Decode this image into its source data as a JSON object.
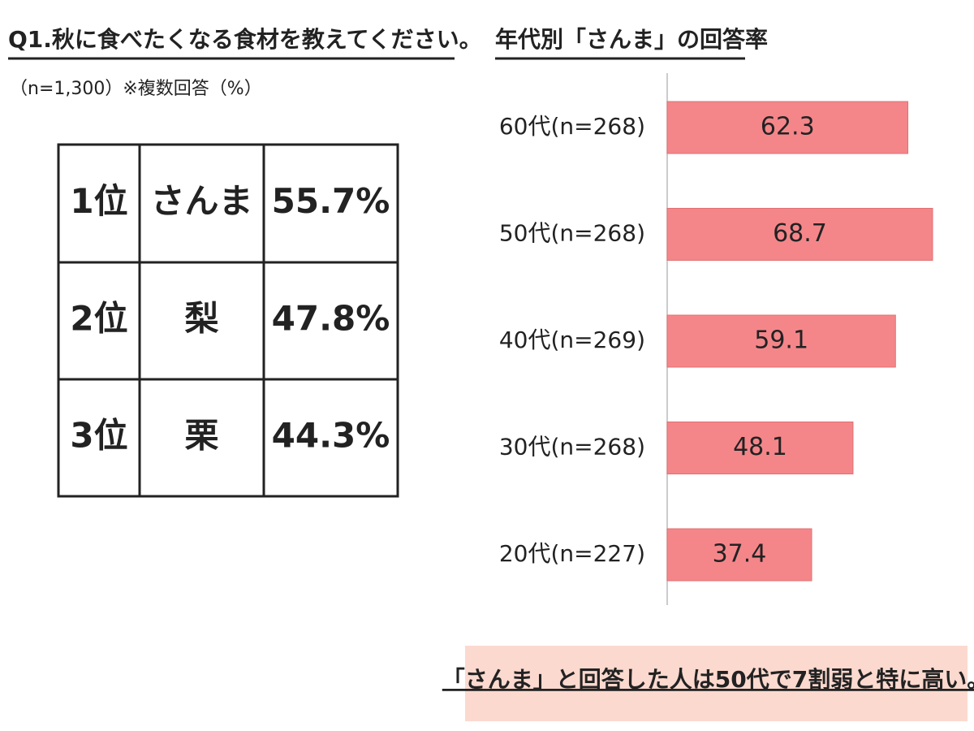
{
  "header": {
    "title": "Q1.秋に食べたくなる食材を教えてください。",
    "note": "（n=1,300）※複数回答（%）"
  },
  "table": {
    "rows": [
      [
        "1位",
        "さんま",
        "55.7%"
      ],
      [
        "2位",
        "梨",
        "47.8%"
      ],
      [
        "3位",
        "栗",
        "44.3%"
      ]
    ]
  },
  "chart_data": {
    "type": "bar",
    "orientation": "horizontal",
    "title": "年代別「さんま」の回答率",
    "categories": [
      "60代(n=268)",
      "50代(n=268)",
      "40代(n=269)",
      "30代(n=268)",
      "20代(n=227)"
    ],
    "values": [
      62.3,
      68.7,
      59.1,
      48.1,
      37.4
    ],
    "color": "#f4868a",
    "xlim": [
      0,
      79
    ],
    "annotation": "「さんま」と回答した人は50代で7割弱と特に高い。"
  }
}
